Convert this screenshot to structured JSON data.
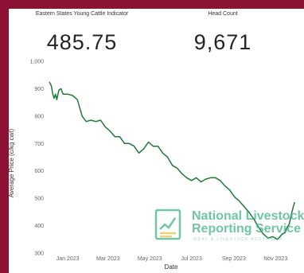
{
  "kpis": {
    "indicator": {
      "label": "Eastern States Young Cattle Indicator",
      "value": "485.75"
    },
    "head_count": {
      "label": "Head Count",
      "value": "9,671"
    }
  },
  "watermark": {
    "icon": "report-chart-icon",
    "line1": "National Livestock",
    "line2": "Reporting Service",
    "subtitle": "MEAT & LIVESTOCK AUSTRALIA",
    "color": "#49b58a"
  },
  "colors": {
    "frame": "#8c1233",
    "line": "#1f7a3a"
  },
  "chart_data": {
    "type": "line",
    "xlabel": "Date",
    "ylabel": "Average Price (c/kg cwt)",
    "ylim": [
      300,
      1000
    ],
    "y_ticks": [
      "300",
      "400",
      "500",
      "600",
      "700",
      "800",
      "900",
      "1,000"
    ],
    "x_ticks": [
      {
        "label": "Jan 2023",
        "date": "2023-01-01"
      },
      {
        "label": "Mar 2023",
        "date": "2023-03-01"
      },
      {
        "label": "May 2023",
        "date": "2023-05-01"
      },
      {
        "label": "Jul 2023",
        "date": "2023-07-01"
      },
      {
        "label": "Sep 2023",
        "date": "2023-09-01"
      },
      {
        "label": "Nov 2023",
        "date": "2023-11-01"
      }
    ],
    "xlim": [
      "2022-12-05",
      "2023-12-01"
    ],
    "grid": false,
    "series": [
      {
        "points": [
          [
            "2022-12-05",
            925
          ],
          [
            "2022-12-08",
            910
          ],
          [
            "2022-12-10",
            880
          ],
          [
            "2022-12-12",
            865
          ],
          [
            "2022-12-14",
            880
          ],
          [
            "2022-12-16",
            860
          ],
          [
            "2022-12-19",
            895
          ],
          [
            "2022-12-22",
            900
          ],
          [
            "2022-12-25",
            880
          ],
          [
            "2022-12-28",
            880
          ],
          [
            "2023-01-01",
            880
          ],
          [
            "2023-01-08",
            875
          ],
          [
            "2023-01-15",
            860
          ],
          [
            "2023-01-22",
            800
          ],
          [
            "2023-01-28",
            780
          ],
          [
            "2023-02-04",
            785
          ],
          [
            "2023-02-11",
            780
          ],
          [
            "2023-02-18",
            785
          ],
          [
            "2023-02-25",
            760
          ],
          [
            "2023-03-04",
            745
          ],
          [
            "2023-03-11",
            725
          ],
          [
            "2023-03-18",
            725
          ],
          [
            "2023-03-25",
            700
          ],
          [
            "2023-04-01",
            700
          ],
          [
            "2023-04-08",
            690
          ],
          [
            "2023-04-15",
            665
          ],
          [
            "2023-04-22",
            680
          ],
          [
            "2023-04-29",
            705
          ],
          [
            "2023-05-06",
            690
          ],
          [
            "2023-05-13",
            690
          ],
          [
            "2023-05-20",
            665
          ],
          [
            "2023-05-27",
            650
          ],
          [
            "2023-06-03",
            620
          ],
          [
            "2023-06-10",
            610
          ],
          [
            "2023-06-17",
            590
          ],
          [
            "2023-06-24",
            575
          ],
          [
            "2023-07-01",
            565
          ],
          [
            "2023-07-08",
            575
          ],
          [
            "2023-07-15",
            560
          ],
          [
            "2023-07-22",
            570
          ],
          [
            "2023-07-29",
            575
          ],
          [
            "2023-08-05",
            575
          ],
          [
            "2023-08-12",
            565
          ],
          [
            "2023-08-19",
            545
          ],
          [
            "2023-08-26",
            530
          ],
          [
            "2023-09-02",
            505
          ],
          [
            "2023-09-09",
            490
          ],
          [
            "2023-09-16",
            470
          ],
          [
            "2023-09-23",
            450
          ],
          [
            "2023-09-30",
            425
          ],
          [
            "2023-10-07",
            395
          ],
          [
            "2023-10-14",
            370
          ],
          [
            "2023-10-21",
            355
          ],
          [
            "2023-10-28",
            360
          ],
          [
            "2023-11-04",
            350
          ],
          [
            "2023-11-11",
            370
          ],
          [
            "2023-11-15",
            375
          ],
          [
            "2023-11-18",
            395
          ],
          [
            "2023-11-21",
            405
          ],
          [
            "2023-11-24",
            440
          ],
          [
            "2023-11-27",
            470
          ],
          [
            "2023-11-29",
            486
          ]
        ]
      }
    ]
  }
}
